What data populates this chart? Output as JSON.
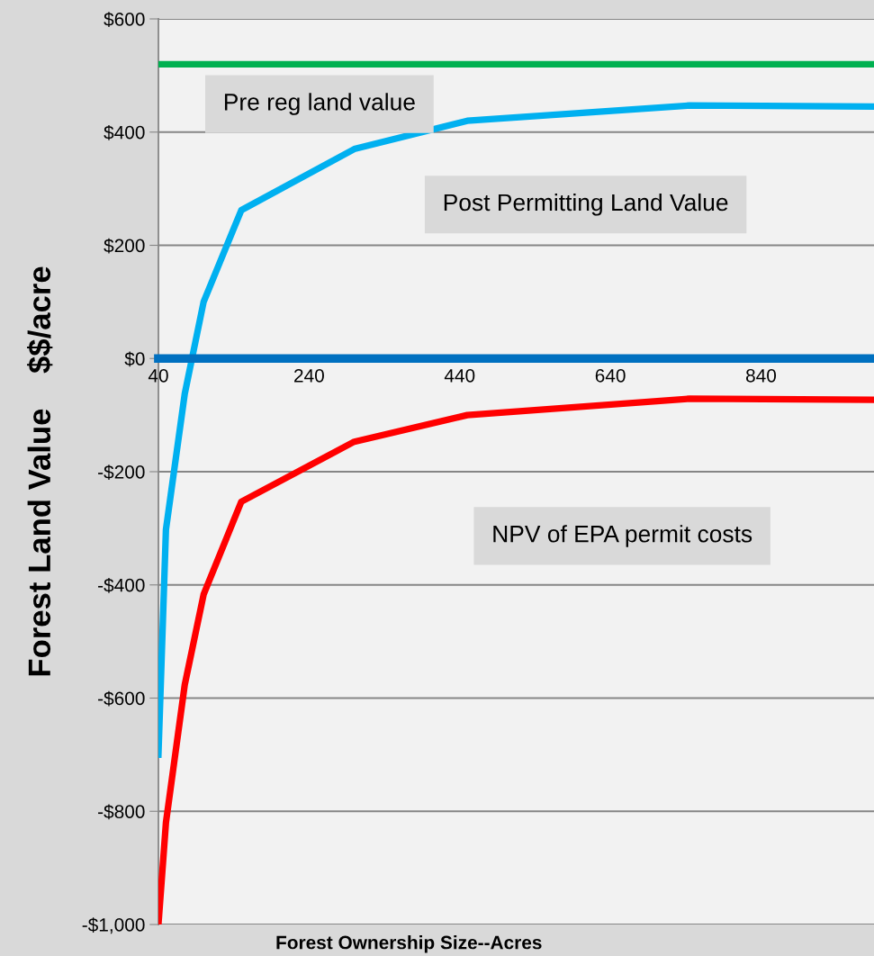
{
  "chart_data": {
    "type": "line",
    "xlabel": "Forest Ownership Size--Acres",
    "ylabel": "Forest Land Value    $$/acre",
    "x": [
      40,
      50,
      75,
      100,
      150,
      300,
      450,
      745,
      990
    ],
    "series": [
      {
        "color": "#00b050",
        "values": [
          520,
          520,
          520,
          520,
          520,
          520,
          520,
          520,
          520
        ]
      },
      {
        "color": "#00b0f0",
        "values": [
          -700,
          -302,
          -62,
          100,
          262,
          370,
          420,
          447,
          445
        ]
      },
      {
        "color": "#ff0000",
        "values": [
          -1000,
          -820,
          -576,
          -417,
          -253,
          -147,
          -100,
          -71,
          -73
        ]
      }
    ],
    "xlim": [
      40,
      990
    ],
    "xticks": [
      40,
      240,
      440,
      640,
      840
    ],
    "ylim": [
      -1000,
      600
    ],
    "yticks": [
      {
        "value": -1000,
        "label": "-$1,000"
      },
      {
        "value": -800,
        "label": "-$800"
      },
      {
        "value": -600,
        "label": "-$600"
      },
      {
        "value": -400,
        "label": "-$400"
      },
      {
        "value": -200,
        "label": "-$200"
      },
      {
        "value": 0,
        "label": "$0"
      },
      {
        "value": 200,
        "label": "$200"
      },
      {
        "value": 400,
        "label": "$400"
      },
      {
        "value": 600,
        "label": "$600"
      }
    ],
    "annotations": [
      "Pre reg land value",
      "Post Permitting Land Value",
      "NPV of EPA permit costs"
    ],
    "grid": "y",
    "marker": "none",
    "line_style": "solid"
  }
}
